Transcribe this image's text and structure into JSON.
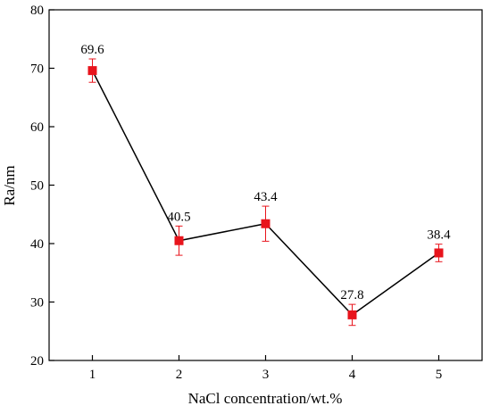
{
  "chart_data": {
    "type": "line",
    "title": "",
    "xlabel": "NaCl concentration/wt.%",
    "ylabel": "Ra/nm",
    "xlim": [
      0.5,
      5.5
    ],
    "ylim": [
      20,
      80
    ],
    "x_ticks": [
      1,
      2,
      3,
      4,
      5
    ],
    "y_ticks": [
      20,
      30,
      40,
      50,
      60,
      70,
      80
    ],
    "grid": false,
    "legend": "none",
    "series": [
      {
        "x": [
          1,
          2,
          3,
          4,
          5
        ],
        "values": [
          69.6,
          40.5,
          43.4,
          27.8,
          38.4
        ],
        "error": [
          2.0,
          2.5,
          3.0,
          1.8,
          1.5
        ],
        "labels": [
          "69.6",
          "40.5",
          "43.4",
          "27.8",
          "38.4"
        ],
        "line_color": "#000000",
        "marker_color": "#e8141c",
        "marker": "square"
      }
    ]
  }
}
